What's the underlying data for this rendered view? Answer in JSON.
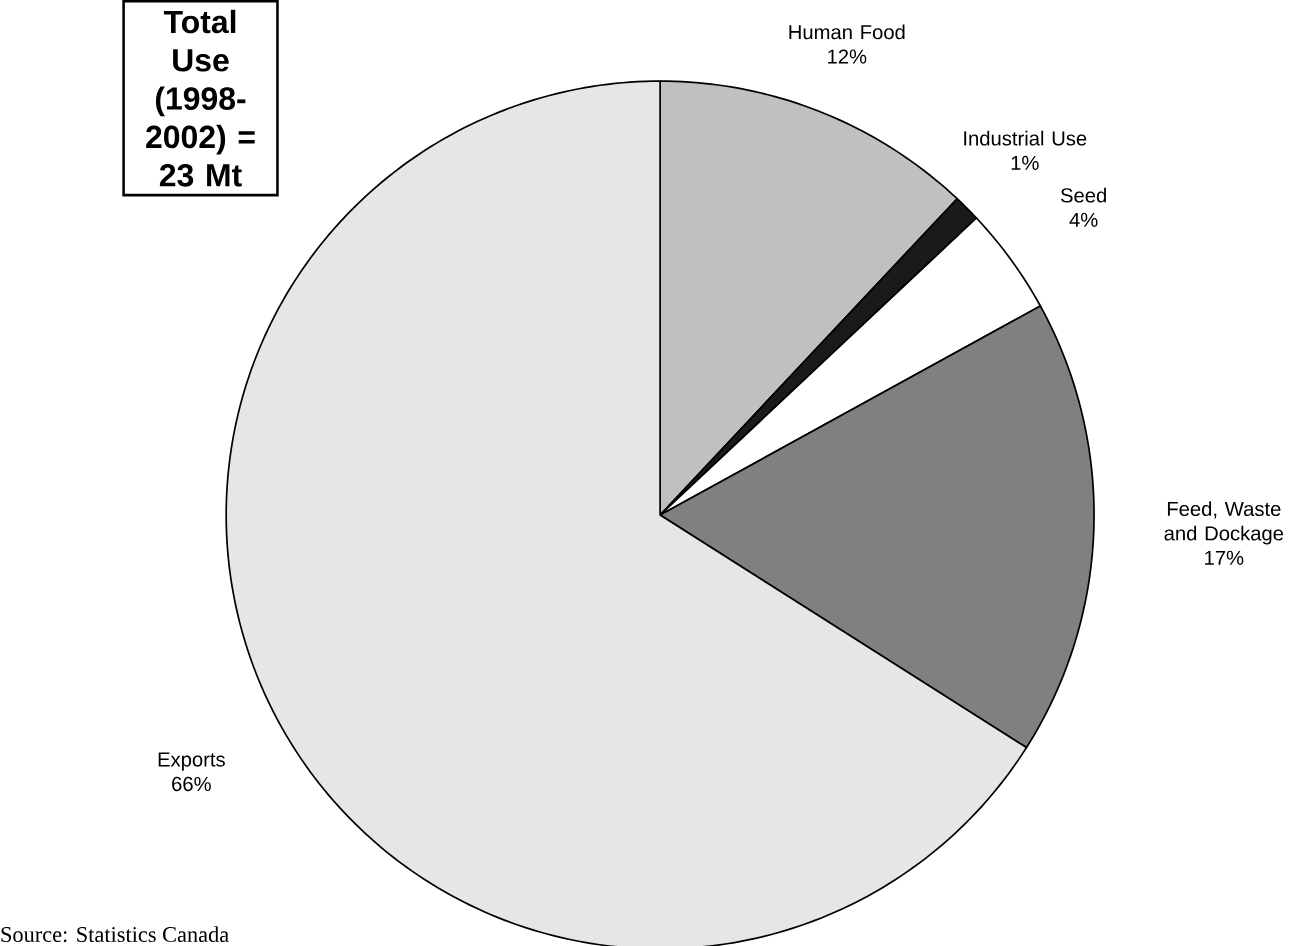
{
  "chart_data": {
    "type": "pie",
    "title": "Total Use (1998-2002) = 23 Mt",
    "categories": [
      "Human Food",
      "Industrial Use",
      "Seed",
      "Feed, Waste and Dockage",
      "Exports"
    ],
    "values": [
      12,
      1,
      4,
      17,
      66
    ],
    "value_labels": [
      "12%",
      "1%",
      "4%",
      "17%",
      "66%"
    ],
    "colors": [
      "#c0c0c0",
      "#1a1a1a",
      "#ffffff",
      "#808080",
      "#e6e6e6"
    ],
    "annotations": [
      "Source: Statistics Canada"
    ]
  }
}
